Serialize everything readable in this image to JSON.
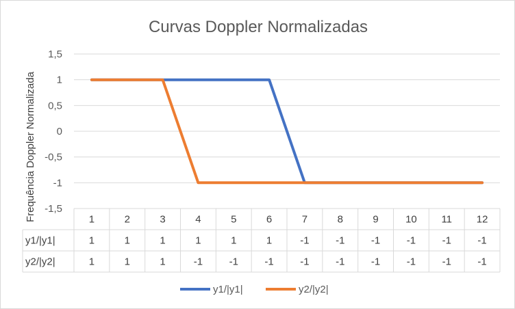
{
  "chart_data": {
    "type": "line",
    "title": "Curvas Doppler Normalizadas",
    "ylabel": "Frequência Doppler Normalizada",
    "xlabel": "",
    "categories": [
      "1",
      "2",
      "3",
      "4",
      "5",
      "6",
      "7",
      "8",
      "9",
      "10",
      "11",
      "12"
    ],
    "ylim": [
      -1.5,
      1.5
    ],
    "yticks": [
      "1,5",
      "1",
      "0,5",
      "0",
      "-0,5",
      "-1",
      "-1,5"
    ],
    "ytick_values": [
      1.5,
      1,
      0.5,
      0,
      -0.5,
      -1,
      -1.5
    ],
    "grid": true,
    "legend_position": "bottom",
    "data_table": true,
    "series": [
      {
        "name": "y1/|y1|",
        "color": "#4472c4",
        "values": [
          1,
          1,
          1,
          1,
          1,
          1,
          -1,
          -1,
          -1,
          -1,
          -1,
          -1
        ],
        "display": [
          "1",
          "1",
          "1",
          "1",
          "1",
          "1",
          "-1",
          "-1",
          "-1",
          "-1",
          "-1",
          "-1"
        ]
      },
      {
        "name": "y2/|y2|",
        "color": "#ed7d31",
        "values": [
          1,
          1,
          1,
          -1,
          -1,
          -1,
          -1,
          -1,
          -1,
          -1,
          -1,
          -1
        ],
        "display": [
          "1",
          "1",
          "1",
          "-1",
          "-1",
          "-1",
          "-1",
          "-1",
          "-1",
          "-1",
          "-1",
          "-1"
        ]
      }
    ]
  }
}
